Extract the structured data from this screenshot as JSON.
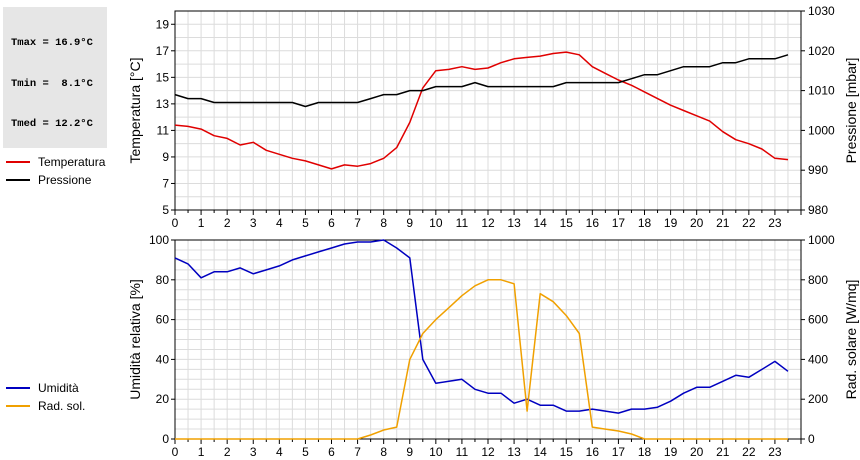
{
  "stats": {
    "tmax": "Tmax = 16.9°C",
    "tmin": "Tmin =  8.1°C",
    "tmed": "Tmed = 12.2°C"
  },
  "chart_data": [
    {
      "type": "line",
      "xlabel": "",
      "xlim": [
        0,
        24
      ],
      "x_ticks": [
        "0",
        "1",
        "2",
        "3",
        "4",
        "5",
        "6",
        "7",
        "8",
        "9",
        "10",
        "11",
        "12",
        "13",
        "14",
        "15",
        "16",
        "17",
        "18",
        "19",
        "20",
        "21",
        "22",
        "23"
      ],
      "grid": true,
      "legend_position": "left",
      "ylabel_left": "Temperatura [°C]",
      "ylim_left": [
        5,
        20
      ],
      "yticks_left": [
        5,
        7,
        9,
        11,
        13,
        15,
        17,
        19
      ],
      "ylabel_right": "Pressione [mbar]",
      "ylim_right": [
        980,
        1030
      ],
      "yticks_right": [
        980,
        990,
        1000,
        1010,
        1020,
        1030
      ],
      "series": [
        {
          "name": "Temperatura",
          "axis": "left",
          "color": "#e00000",
          "x": [
            0,
            0.5,
            1,
            1.5,
            2,
            2.5,
            3,
            3.5,
            4,
            4.5,
            5,
            5.5,
            6,
            6.5,
            7,
            7.5,
            8,
            8.5,
            9,
            9.5,
            10,
            10.5,
            11,
            11.5,
            12,
            12.5,
            13,
            13.5,
            14,
            14.5,
            15,
            15.5,
            16,
            16.5,
            17,
            17.5,
            18,
            18.5,
            19,
            19.5,
            20,
            20.5,
            21,
            21.5,
            22,
            22.5,
            23,
            23.5
          ],
          "y": [
            11.4,
            11.3,
            11.1,
            10.6,
            10.4,
            9.9,
            10.1,
            9.5,
            9.2,
            8.9,
            8.7,
            8.4,
            8.1,
            8.4,
            8.3,
            8.5,
            8.9,
            9.7,
            11.6,
            14.2,
            15.5,
            15.6,
            15.8,
            15.6,
            15.7,
            16.1,
            16.4,
            16.5,
            16.6,
            16.8,
            16.9,
            16.7,
            15.8,
            15.3,
            14.8,
            14.4,
            13.9,
            13.4,
            12.9,
            12.5,
            12.1,
            11.7,
            10.9,
            10.3,
            10.0,
            9.6,
            8.9,
            8.8
          ]
        },
        {
          "name": "Pressione",
          "axis": "right",
          "color": "#000000",
          "x": [
            0,
            0.5,
            1,
            1.5,
            2,
            2.5,
            3,
            3.5,
            4,
            4.5,
            5,
            5.5,
            6,
            6.5,
            7,
            7.5,
            8,
            8.5,
            9,
            9.5,
            10,
            10.5,
            11,
            11.5,
            12,
            12.5,
            13,
            13.5,
            14,
            14.5,
            15,
            15.5,
            16,
            16.5,
            17,
            17.5,
            18,
            18.5,
            19,
            19.5,
            20,
            20.5,
            21,
            21.5,
            22,
            22.5,
            23,
            23.5
          ],
          "y": [
            1009,
            1008,
            1008,
            1007,
            1007,
            1007,
            1007,
            1007,
            1007,
            1007,
            1006,
            1007,
            1007,
            1007,
            1007,
            1008,
            1009,
            1009,
            1010,
            1010,
            1011,
            1011,
            1011,
            1012,
            1011,
            1011,
            1011,
            1011,
            1011,
            1011,
            1012,
            1012,
            1012,
            1012,
            1012,
            1013,
            1014,
            1014,
            1015,
            1016,
            1016,
            1016,
            1017,
            1017,
            1018,
            1018,
            1018,
            1019
          ]
        }
      ]
    },
    {
      "type": "line",
      "xlabel": "",
      "xlim": [
        0,
        24
      ],
      "x_ticks": [
        "0",
        "1",
        "2",
        "3",
        "4",
        "5",
        "6",
        "7",
        "8",
        "9",
        "10",
        "11",
        "12",
        "13",
        "14",
        "15",
        "16",
        "17",
        "18",
        "19",
        "20",
        "21",
        "22",
        "23"
      ],
      "grid": true,
      "legend_position": "left",
      "ylabel_left": "Umidità relativa [%]",
      "ylim_left": [
        0,
        100
      ],
      "yticks_left": [
        0,
        20,
        40,
        60,
        80,
        100
      ],
      "ylabel_right": "Rad. solare [W/mq]",
      "ylim_right": [
        0,
        1000
      ],
      "yticks_right": [
        0,
        200,
        400,
        600,
        800,
        1000
      ],
      "series": [
        {
          "name": "Umidità",
          "axis": "left",
          "color": "#0000c0",
          "x": [
            0,
            0.5,
            1,
            1.5,
            2,
            2.5,
            3,
            3.5,
            4,
            4.5,
            5,
            5.5,
            6,
            6.5,
            7,
            7.5,
            8,
            8.5,
            9,
            9.5,
            10,
            10.5,
            11,
            11.5,
            12,
            12.5,
            13,
            13.5,
            14,
            14.5,
            15,
            15.5,
            16,
            16.5,
            17,
            17.5,
            18,
            18.5,
            19,
            19.5,
            20,
            20.5,
            21,
            21.5,
            22,
            22.5,
            23,
            23.5
          ],
          "y": [
            91,
            88,
            81,
            84,
            84,
            86,
            83,
            85,
            87,
            90,
            92,
            94,
            96,
            98,
            99,
            99,
            100,
            96,
            91,
            40,
            28,
            29,
            30,
            25,
            23,
            23,
            18,
            20,
            17,
            17,
            14,
            14,
            15,
            14,
            13,
            15,
            15,
            16,
            19,
            23,
            26,
            26,
            29,
            32,
            31,
            35,
            39,
            34
          ]
        },
        {
          "name": "Rad. sol.",
          "axis": "right",
          "color": "#f0a000",
          "x": [
            0,
            1,
            2,
            3,
            4,
            5,
            6,
            7,
            7.5,
            8,
            8.5,
            9,
            9.5,
            10,
            10.5,
            11,
            11.5,
            12,
            12.5,
            13,
            13.5,
            14,
            14.5,
            15,
            15.5,
            16,
            16.5,
            17,
            17.5,
            18,
            18.5,
            19,
            20,
            21,
            22,
            23,
            23.5
          ],
          "y": [
            0,
            0,
            0,
            0,
            0,
            0,
            0,
            0,
            20,
            45,
            60,
            400,
            530,
            600,
            660,
            720,
            770,
            800,
            800,
            780,
            140,
            730,
            690,
            620,
            530,
            60,
            50,
            40,
            25,
            0,
            0,
            0,
            0,
            0,
            0,
            0,
            0
          ]
        }
      ]
    }
  ]
}
